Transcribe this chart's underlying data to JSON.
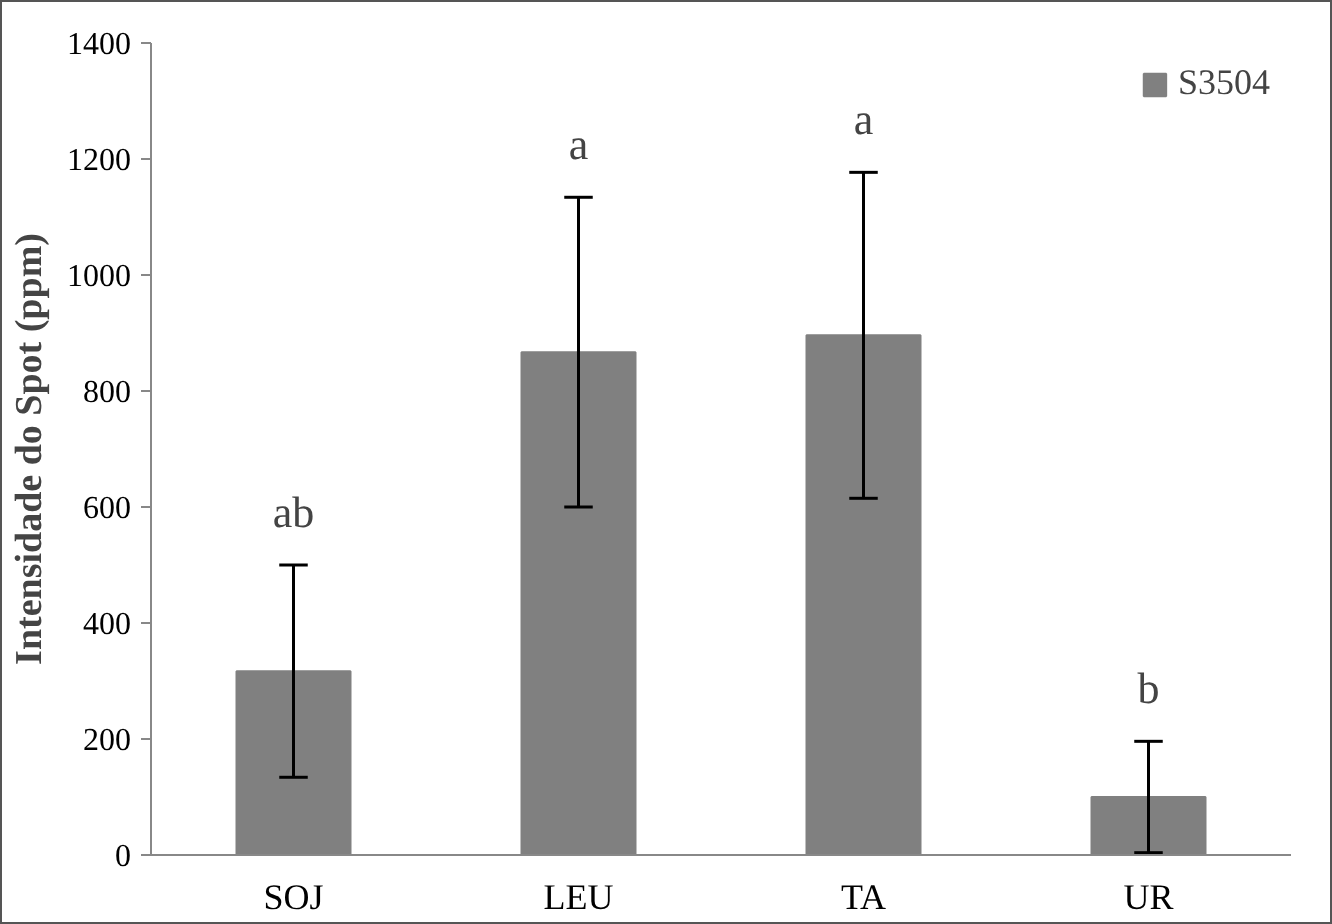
{
  "chart_data": {
    "type": "bar",
    "ylabel": "Intensidade do Spot (ppm)",
    "categories": [
      "SOJ",
      "LEU",
      "TA",
      "UR"
    ],
    "series": [
      {
        "name": "S3504",
        "color": "#808080",
        "values": [
          317,
          867,
          896,
          100
        ],
        "errors": [
          183,
          267,
          281,
          96
        ]
      }
    ],
    "ylim": [
      0,
      1400
    ],
    "yticks": [
      0,
      200,
      400,
      600,
      800,
      1000,
      1200,
      1400
    ],
    "grid": false,
    "legend": "top right",
    "annotations": [
      {
        "text": "ab",
        "x": "SOJ",
        "y": 500
      },
      {
        "text": "a",
        "x": "LEU",
        "y": 1134
      },
      {
        "text": "a",
        "x": "TA",
        "y": 1178
      },
      {
        "text": "b",
        "x": "UR",
        "y": 197
      }
    ]
  }
}
